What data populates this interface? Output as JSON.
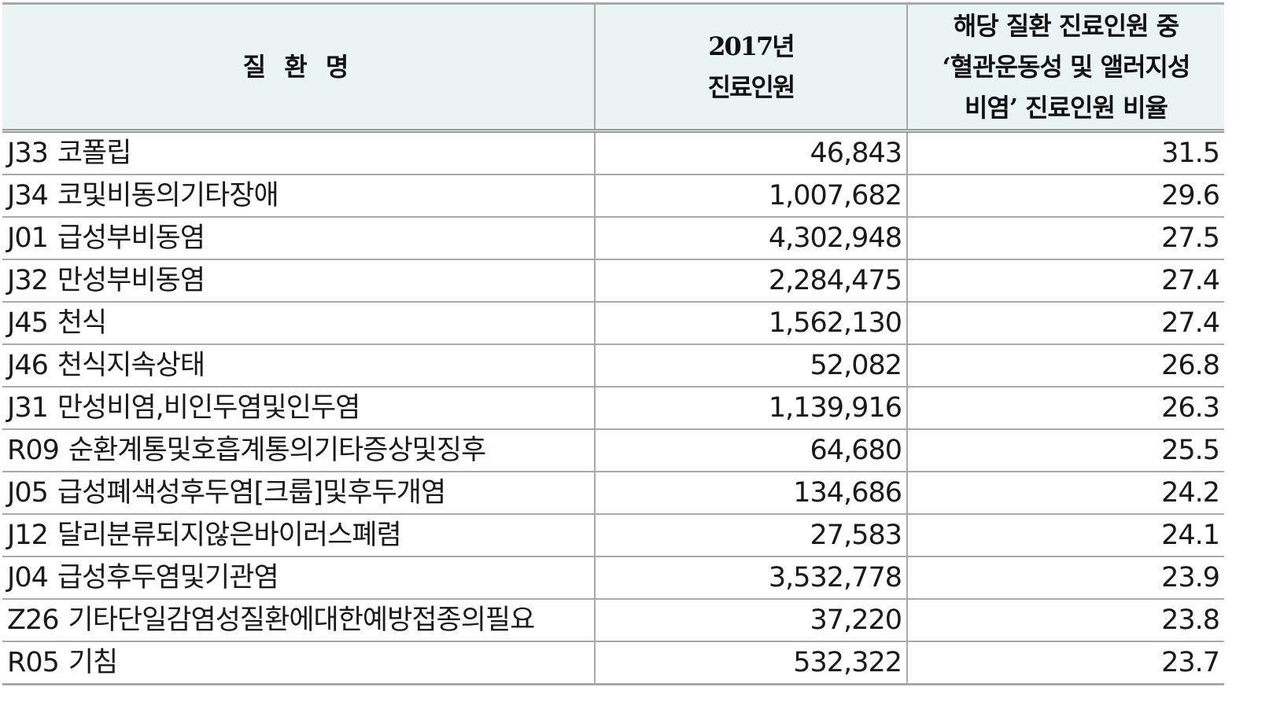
{
  "header": {
    "col1": "질 환 명",
    "col2_line1": "2017년",
    "col2_line2": "진료인원",
    "col3_line1": "해당 질환 진료인원 중",
    "col3_line2": "‘혈관운동성 및 앨러지성",
    "col3_line3": "비염’ 진료인원 비율"
  },
  "rows": [
    {
      "code": "J33",
      "name": "코폴립",
      "patients": "46,843",
      "ratio": "31.5"
    },
    {
      "code": "J34",
      "name": "코및비동의기타장애",
      "patients": "1,007,682",
      "ratio": "29.6"
    },
    {
      "code": "J01",
      "name": "급성부비동염",
      "patients": "4,302,948",
      "ratio": "27.5"
    },
    {
      "code": "J32",
      "name": "만성부비동염",
      "patients": "2,284,475",
      "ratio": "27.4"
    },
    {
      "code": "J45",
      "name": "천식",
      "patients": "1,562,130",
      "ratio": "27.4"
    },
    {
      "code": "J46",
      "name": "천식지속상태",
      "patients": "52,082",
      "ratio": "26.8"
    },
    {
      "code": "J31",
      "name": "만성비염,비인두염및인두염",
      "patients": "1,139,916",
      "ratio": "26.3"
    },
    {
      "code": "R09",
      "name": "순환계통및호흡계통의기타증상및징후",
      "patients": "64,680",
      "ratio": "25.5"
    },
    {
      "code": "J05",
      "name": "급성폐색성후두염[크룹]및후두개염",
      "patients": "134,686",
      "ratio": "24.2"
    },
    {
      "code": "J12",
      "name": "달리분류되지않은바이러스폐렴",
      "patients": "27,583",
      "ratio": "24.1"
    },
    {
      "code": "J04",
      "name": "급성후두염및기관염",
      "patients": "3,532,778",
      "ratio": "23.9"
    },
    {
      "code": "Z26",
      "name": "기타단일감염성질환에대한예방접종의필요",
      "patients": "37,220",
      "ratio": "23.8"
    },
    {
      "code": "R05",
      "name": "기침",
      "patients": "532,322",
      "ratio": "23.7"
    }
  ]
}
